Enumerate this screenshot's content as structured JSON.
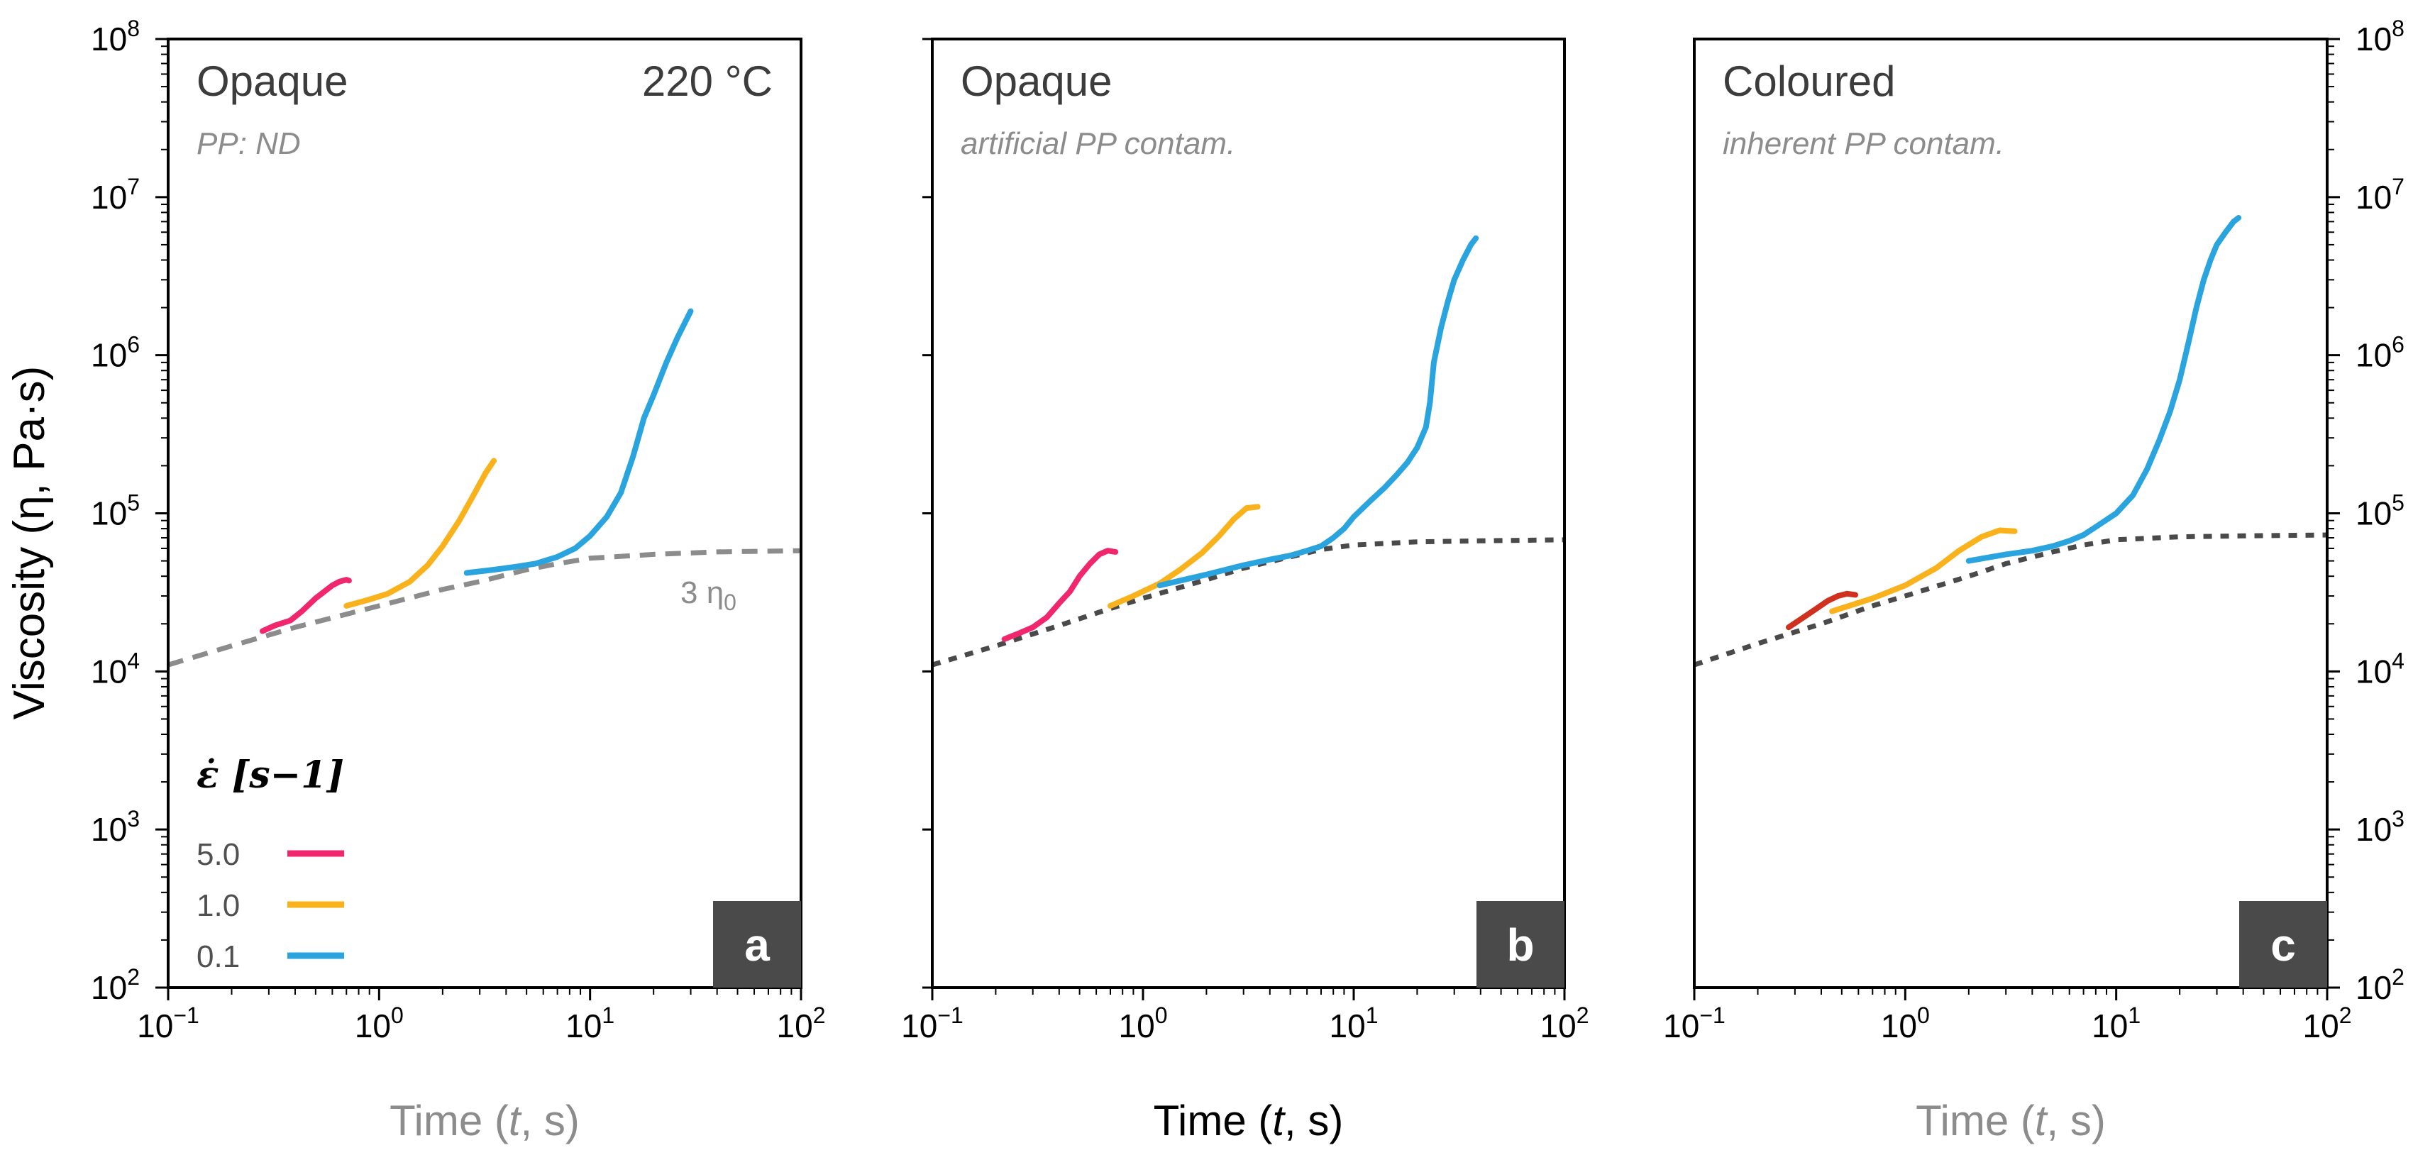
{
  "chart_data": [
    {
      "type": "line",
      "panel_id": "a",
      "title": "Opaque",
      "title_right": "220 °C",
      "subtitle": "PP: ND",
      "xlabel": "Time (t, s)",
      "ylabel": "Viscosity  (η, Pa·s)",
      "x_scale": "log",
      "y_scale": "log",
      "xlim": [
        0.1,
        100
      ],
      "ylim": [
        100,
        100000000
      ],
      "x_ticks": [
        "10−1",
        "10⁰",
        "10¹",
        "10²"
      ],
      "y_ticks": [
        "10²",
        "10³",
        "10⁴",
        "10⁵",
        "10⁶",
        "10⁷",
        "10⁸"
      ],
      "annotation": "3 η0",
      "badge": "a",
      "series": [
        {
          "name": "3 η0",
          "style": "dashed",
          "color": "#8c8c8c",
          "x": [
            0.1,
            0.2,
            0.4,
            0.7,
            1,
            2,
            3,
            5,
            7,
            10,
            20,
            40,
            100
          ],
          "y": [
            11000,
            14500,
            19000,
            23000,
            26000,
            33000,
            37000,
            44000,
            48000,
            52000,
            55000,
            57000,
            58000
          ]
        },
        {
          "name": "5.0",
          "color": "#f0276d",
          "x": [
            0.28,
            0.32,
            0.38,
            0.43,
            0.5,
            0.55,
            0.6,
            0.65,
            0.7,
            0.72
          ],
          "y": [
            18000,
            19500,
            21000,
            24000,
            29000,
            32000,
            35000,
            37000,
            38000,
            37500
          ]
        },
        {
          "name": "1.0",
          "color": "#f9b21b",
          "x": [
            0.7,
            0.9,
            1.1,
            1.4,
            1.7,
            2.0,
            2.4,
            2.8,
            3.2,
            3.5
          ],
          "y": [
            26000,
            28500,
            31000,
            37000,
            47000,
            62000,
            90000,
            130000,
            180000,
            215000
          ]
        },
        {
          "name": "0.1",
          "color": "#2aa4de",
          "x": [
            2.6,
            3.5,
            4.5,
            5.5,
            7,
            8.5,
            10,
            12,
            14,
            16,
            18,
            20,
            23,
            26,
            30
          ],
          "y": [
            42000,
            44000,
            46000,
            48000,
            53000,
            60000,
            72000,
            95000,
            135000,
            230000,
            400000,
            560000,
            900000,
            1300000,
            1900000
          ]
        }
      ],
      "legend": {
        "title": "ε̇ [s−1]",
        "entries": [
          {
            "label": "5.0",
            "color": "#f0276d"
          },
          {
            "label": "1.0",
            "color": "#f9b21b"
          },
          {
            "label": "0.1",
            "color": "#2aa4de"
          }
        ]
      }
    },
    {
      "type": "line",
      "panel_id": "b",
      "title": "Opaque",
      "subtitle": "artificial PP contam.",
      "xlabel": "Time (t, s)",
      "x_scale": "log",
      "y_scale": "log",
      "xlim": [
        0.1,
        100
      ],
      "ylim": [
        100,
        100000000
      ],
      "x_ticks": [
        "10−1",
        "10⁰",
        "10¹",
        "10²"
      ],
      "badge": "b",
      "series": [
        {
          "name": "3 η0",
          "style": "dotted",
          "color": "#4a4a4a",
          "x": [
            0.1,
            0.2,
            0.4,
            0.7,
            1,
            2,
            3,
            5,
            7,
            10,
            20,
            40,
            100
          ],
          "y": [
            11000,
            14500,
            19500,
            25000,
            29000,
            38000,
            45000,
            53000,
            59000,
            63000,
            66000,
            67000,
            68000
          ]
        },
        {
          "name": "5.0",
          "color": "#f0276d",
          "x": [
            0.22,
            0.26,
            0.3,
            0.35,
            0.4,
            0.45,
            0.5,
            0.56,
            0.62,
            0.68,
            0.74
          ],
          "y": [
            16000,
            17500,
            19000,
            22000,
            27000,
            32000,
            40000,
            48000,
            55000,
            58000,
            57000
          ]
        },
        {
          "name": "1.0",
          "color": "#f9b21b",
          "x": [
            0.7,
            0.9,
            1.2,
            1.5,
            1.9,
            2.3,
            2.7,
            3.1,
            3.5
          ],
          "y": [
            26000,
            30000,
            36000,
            44000,
            56000,
            72000,
            92000,
            108000,
            110000
          ]
        },
        {
          "name": "0.1",
          "color": "#2aa4de",
          "x": [
            1.2,
            2,
            3,
            4,
            5,
            6,
            7,
            8,
            9,
            10,
            12,
            14,
            16,
            18,
            20,
            22,
            23,
            24,
            26,
            28,
            30,
            33,
            36,
            38
          ],
          "y": [
            35000,
            41000,
            47000,
            51000,
            54000,
            58000,
            62000,
            70000,
            80000,
            95000,
            120000,
            145000,
            175000,
            210000,
            260000,
            350000,
            500000,
            900000,
            1500000,
            2200000,
            3000000,
            4000000,
            5000000,
            5500000
          ]
        }
      ]
    },
    {
      "type": "line",
      "panel_id": "c",
      "title": "Coloured",
      "subtitle": "inherent PP contam.",
      "xlabel": "Time (t, s)",
      "x_scale": "log",
      "y_scale": "log",
      "xlim": [
        0.1,
        100
      ],
      "ylim": [
        100,
        100000000
      ],
      "x_ticks": [
        "10−1",
        "10⁰",
        "10¹",
        "10²"
      ],
      "y_ticks": [
        "10²",
        "10³",
        "10⁴",
        "10⁵",
        "10⁶",
        "10⁷",
        "10⁸"
      ],
      "badge": "c",
      "series": [
        {
          "name": "3 η0",
          "style": "dotted",
          "color": "#4a4a4a",
          "x": [
            0.1,
            0.2,
            0.4,
            0.7,
            1,
            2,
            3,
            5,
            7,
            10,
            20,
            40,
            100
          ],
          "y": [
            11000,
            15000,
            20000,
            26000,
            30000,
            40000,
            48000,
            57000,
            63000,
            68000,
            71000,
            72000,
            73000
          ]
        },
        {
          "name": "5.0",
          "color": "#d0301e",
          "x": [
            0.28,
            0.33,
            0.38,
            0.43,
            0.48,
            0.53,
            0.58
          ],
          "y": [
            19000,
            22000,
            25000,
            28000,
            30000,
            31000,
            30500
          ]
        },
        {
          "name": "1.0",
          "color": "#f9b21b",
          "x": [
            0.45,
            0.7,
            1,
            1.4,
            1.8,
            2.3,
            2.8,
            3.3
          ],
          "y": [
            24000,
            29000,
            35000,
            45000,
            58000,
            71000,
            78000,
            77000
          ]
        },
        {
          "name": "0.1",
          "color": "#2aa4de",
          "x": [
            2,
            3,
            4,
            5,
            6,
            7,
            8,
            10,
            12,
            14,
            16,
            18,
            20,
            22,
            24,
            26,
            28,
            30,
            33,
            36,
            38
          ],
          "y": [
            50000,
            55000,
            58000,
            62000,
            67000,
            73000,
            82000,
            100000,
            130000,
            190000,
            290000,
            440000,
            700000,
            1200000,
            2000000,
            3000000,
            4000000,
            5000000,
            6000000,
            7000000,
            7400000
          ]
        }
      ]
    }
  ]
}
